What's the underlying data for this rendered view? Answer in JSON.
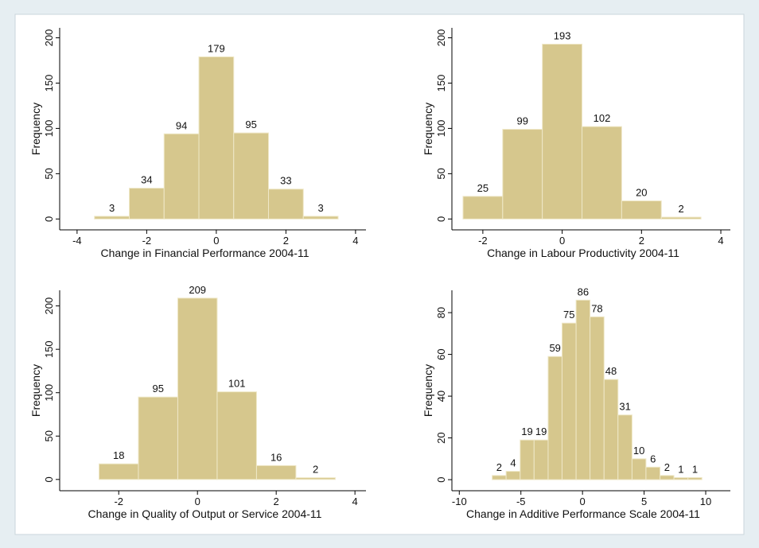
{
  "chart_data": [
    {
      "type": "histogram",
      "x_label": "Change in Financial Performance 2004-11",
      "y_label": "Frequency",
      "bins": [
        -3.5,
        -2.5,
        -1.5,
        -0.5,
        0.5,
        1.5,
        2.5,
        3.5
      ],
      "values": [
        3,
        34,
        94,
        179,
        95,
        33,
        3
      ],
      "color": "#d6c78d",
      "xlim": [
        -4.5,
        4.3
      ],
      "xticks": [
        -4,
        -2,
        0,
        2,
        4
      ],
      "ylim": [
        -12,
        211
      ],
      "yticks": [
        0,
        50,
        100,
        150,
        200
      ]
    },
    {
      "type": "histogram",
      "x_label": "Change in Labour Productivity 2004-11",
      "y_label": "Frequency",
      "bins": [
        -2.5,
        -1.5,
        -0.5,
        0.5,
        1.5,
        2.5,
        3.5
      ],
      "values": [
        25,
        99,
        193,
        102,
        20,
        2
      ],
      "color": "#d6c78d",
      "xlim": [
        -2.78,
        4.24
      ],
      "xticks": [
        -2,
        0,
        2,
        4
      ],
      "ylim": [
        -12,
        211
      ],
      "yticks": [
        0,
        50,
        100,
        150,
        200
      ]
    },
    {
      "type": "histogram",
      "x_label": "Change in Quality of Output or Service 2004-11",
      "y_label": "Frequency",
      "bins": [
        -2.5,
        -1.5,
        -0.5,
        0.5,
        1.5,
        2.5,
        3.5
      ],
      "values": [
        18,
        95,
        209,
        101,
        16,
        2
      ],
      "color": "#d6c78d",
      "xlim": [
        -3.5,
        4.28
      ],
      "xticks": [
        -2,
        0,
        2,
        4
      ],
      "ylim": [
        -13,
        218
      ],
      "yticks": [
        0,
        50,
        100,
        150,
        200
      ]
    },
    {
      "type": "histogram",
      "x_label": "Change in Additive Performance Scale 2004-11",
      "y_label": "Frequency",
      "bins": [
        -7.33,
        -6.2,
        -5.06,
        -3.93,
        -2.79,
        -1.66,
        -0.52,
        0.61,
        1.75,
        2.88,
        4.02,
        5.15,
        6.29,
        7.42,
        8.56,
        9.69
      ],
      "values": [
        2,
        4,
        19,
        19,
        59,
        75,
        86,
        78,
        48,
        31,
        10,
        6,
        2,
        1,
        1
      ],
      "color": "#d6c78d",
      "xlim": [
        -10.6,
        12
      ],
      "xticks": [
        -10,
        -5,
        0,
        5,
        10
      ],
      "ylim": [
        -5.3,
        90.7
      ],
      "yticks": [
        0,
        20,
        40,
        60,
        80
      ]
    }
  ]
}
